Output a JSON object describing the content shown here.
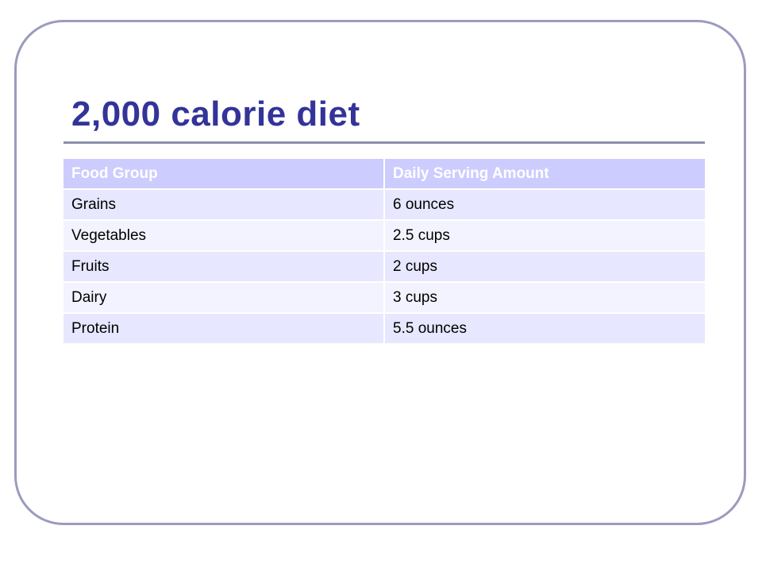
{
  "slide": {
    "title": "2,000 calorie diet"
  },
  "table": {
    "headers": [
      "Food Group",
      "Daily Serving Amount"
    ],
    "rows": [
      [
        "Grains",
        "6 ounces"
      ],
      [
        "Vegetables",
        "2.5 cups"
      ],
      [
        "Fruits",
        "2 cups"
      ],
      [
        "Dairy",
        "3 cups"
      ],
      [
        "Protein",
        "5.5 ounces"
      ]
    ]
  },
  "colors": {
    "title": "#333399",
    "header_bg": "#ccccff",
    "row_odd_bg": "#e7e7ff",
    "row_even_bg": "#f3f3ff",
    "frame_border": "#9a9bbd"
  }
}
